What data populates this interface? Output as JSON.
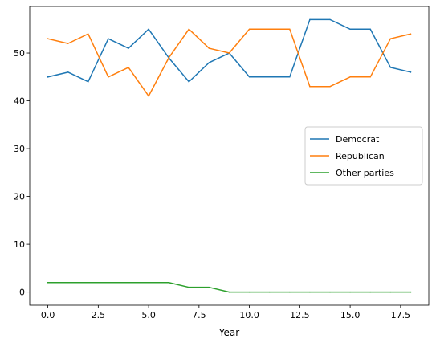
{
  "chart_data": {
    "type": "line",
    "title": "",
    "xlabel": "Year",
    "ylabel": "",
    "x": [
      0,
      1,
      2,
      3,
      4,
      5,
      6,
      7,
      8,
      9,
      10,
      11,
      12,
      13,
      14,
      15,
      16,
      17,
      18
    ],
    "xlim": [
      -0.9,
      18.9
    ],
    "ylim": [
      -2.75,
      59.75
    ],
    "x_ticks": [
      0.0,
      2.5,
      5.0,
      7.5,
      10.0,
      12.5,
      15.0,
      17.5
    ],
    "x_tick_labels": [
      "0.0",
      "2.5",
      "5.0",
      "7.5",
      "10.0",
      "12.5",
      "15.0",
      "17.5"
    ],
    "y_ticks": [
      0,
      10,
      20,
      30,
      40,
      50
    ],
    "y_tick_labels": [
      "0",
      "10",
      "20",
      "30",
      "40",
      "50"
    ],
    "grid": false,
    "legend_position": "center-right",
    "series": [
      {
        "name": "Democrat",
        "color": "#1f77b4",
        "values": [
          45,
          46,
          44,
          53,
          51,
          55,
          49,
          44,
          48,
          50,
          45,
          45,
          45,
          57,
          57,
          55,
          55,
          47,
          46
        ]
      },
      {
        "name": "Republican",
        "color": "#ff7f0e",
        "values": [
          53,
          52,
          54,
          45,
          47,
          41,
          49,
          55,
          51,
          50,
          55,
          55,
          55,
          43,
          43,
          45,
          45,
          53,
          54
        ]
      },
      {
        "name": "Other parties",
        "color": "#2ca02c",
        "values": [
          2,
          2,
          2,
          2,
          2,
          2,
          2,
          1,
          1,
          0,
          0,
          0,
          0,
          0,
          0,
          0,
          0,
          0,
          0
        ]
      }
    ]
  }
}
